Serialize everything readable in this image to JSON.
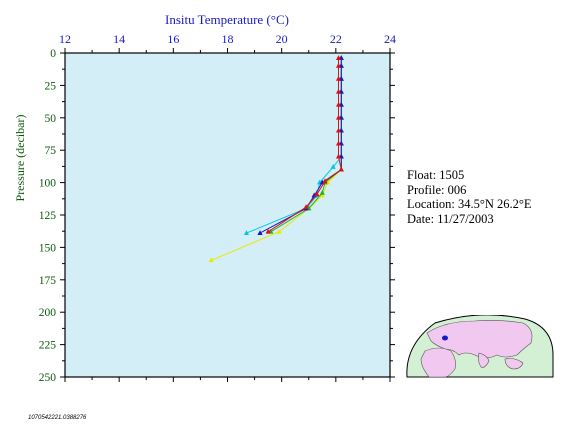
{
  "chart_data": {
    "type": "scatter",
    "title": "Insitu Temperature (°C)",
    "xlabel": "Insitu Temperature (°C)",
    "ylabel": "Pressure (decibar)",
    "xlim": [
      12,
      24
    ],
    "ylim": [
      0,
      250
    ],
    "y_inverted": true,
    "x_ticks": [
      12,
      14,
      16,
      18,
      20,
      22,
      24
    ],
    "y_ticks": [
      0,
      25,
      50,
      75,
      100,
      125,
      150,
      175,
      200,
      225,
      250
    ],
    "x_ticks_text": [
      "12",
      "14",
      "16",
      "18",
      "20",
      "22",
      "24"
    ],
    "y_ticks_text": [
      "0",
      "25",
      "50",
      "75",
      "100",
      "125",
      "150",
      "175",
      "200",
      "225",
      "250"
    ],
    "x_axis_position": "top",
    "grid": false,
    "plot_background": "#d4eef8",
    "series": [
      {
        "color": "#e8e800",
        "points": [
          [
            22.2,
            4
          ],
          [
            22.2,
            10
          ],
          [
            22.2,
            20
          ],
          [
            22.2,
            30
          ],
          [
            22.2,
            40
          ],
          [
            22.2,
            50
          ],
          [
            22.2,
            60
          ],
          [
            22.2,
            70
          ],
          [
            22.2,
            80
          ],
          [
            22.2,
            90
          ],
          [
            21.7,
            100
          ],
          [
            21.5,
            110
          ],
          [
            21.0,
            120
          ],
          [
            19.9,
            138
          ],
          [
            17.4,
            160
          ]
        ]
      },
      {
        "color": "#20b020",
        "points": [
          [
            22.2,
            4
          ],
          [
            22.2,
            10
          ],
          [
            22.2,
            20
          ],
          [
            22.2,
            30
          ],
          [
            22.2,
            40
          ],
          [
            22.2,
            50
          ],
          [
            22.2,
            60
          ],
          [
            22.2,
            70
          ],
          [
            22.2,
            80
          ],
          [
            22.2,
            90
          ],
          [
            21.6,
            100
          ],
          [
            21.5,
            108
          ],
          [
            21.0,
            120
          ],
          [
            19.6,
            138
          ]
        ]
      },
      {
        "color": "#00c8e0",
        "points": [
          [
            22.2,
            4
          ],
          [
            22.2,
            10
          ],
          [
            22.2,
            20
          ],
          [
            22.2,
            30
          ],
          [
            22.2,
            40
          ],
          [
            22.2,
            50
          ],
          [
            22.2,
            60
          ],
          [
            22.2,
            70
          ],
          [
            22.2,
            80
          ],
          [
            21.9,
            88
          ],
          [
            21.4,
            100
          ],
          [
            21.3,
            110
          ],
          [
            20.9,
            120
          ],
          [
            18.7,
            139
          ]
        ]
      },
      {
        "color": "#1818c8",
        "points": [
          [
            22.2,
            4
          ],
          [
            22.2,
            10
          ],
          [
            22.2,
            20
          ],
          [
            22.2,
            30
          ],
          [
            22.2,
            40
          ],
          [
            22.2,
            50
          ],
          [
            22.2,
            60
          ],
          [
            22.2,
            70
          ],
          [
            22.2,
            80
          ],
          [
            22.2,
            90
          ],
          [
            21.5,
            100
          ],
          [
            21.2,
            110
          ],
          [
            20.9,
            120
          ],
          [
            19.2,
            139
          ]
        ]
      },
      {
        "color": "#e01010",
        "points": [
          [
            22.1,
            4
          ],
          [
            22.1,
            10
          ],
          [
            22.1,
            20
          ],
          [
            22.1,
            30
          ],
          [
            22.1,
            40
          ],
          [
            22.1,
            50
          ],
          [
            22.1,
            60
          ],
          [
            22.1,
            70
          ],
          [
            22.1,
            80
          ],
          [
            22.2,
            90
          ],
          [
            21.6,
            99
          ],
          [
            21.3,
            109
          ],
          [
            20.9,
            119
          ],
          [
            19.5,
            138
          ]
        ]
      }
    ]
  },
  "info": {
    "float": "Float:  1505",
    "profile": "Profile:  006",
    "location": "Location:  34.5°N  26.2°E",
    "date": "Date:  11/27/2003"
  },
  "footer": "1070542221.0388276",
  "inset_map": {
    "ocean_color": "#d4f0d4",
    "land_color": "#f0c8f0",
    "marker_color": "#1818c8"
  }
}
